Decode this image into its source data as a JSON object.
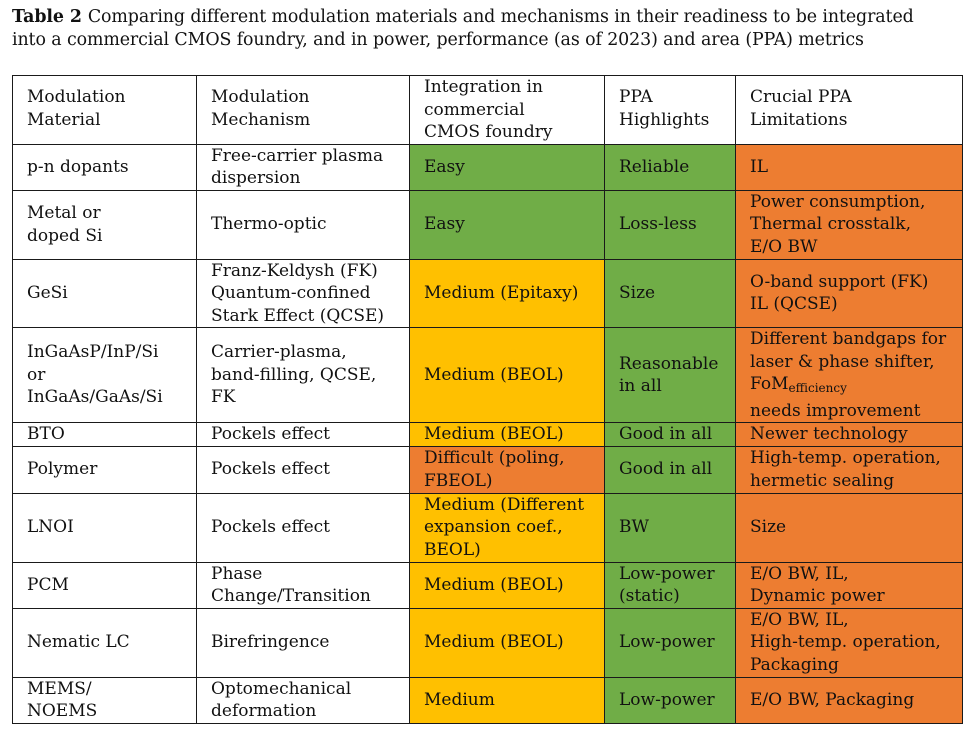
{
  "caption": {
    "label": "Table 2",
    "text_line1": "Comparing different modulation materials and mechanisms in their readiness to be integrated",
    "text_line2": "into a commercial CMOS foundry, and in power, performance (as of 2023) and area (PPA) metrics"
  },
  "colors": {
    "green": "#70ad47",
    "yellow": "#ffc000",
    "orange": "#ed7d31"
  },
  "headers": {
    "material": [
      "Modulation",
      "Material"
    ],
    "mechanism": [
      "Modulation",
      "Mechanism"
    ],
    "integration": [
      "Integration in",
      "commercial",
      "CMOS foundry"
    ],
    "ppa": [
      "PPA",
      "Highlights"
    ],
    "limitations": [
      "Crucial PPA",
      "Limitations"
    ]
  },
  "rows": [
    {
      "material": [
        "p-n dopants"
      ],
      "mechanism": [
        "Free-carrier plasma",
        "dispersion"
      ],
      "integration": [
        "Easy"
      ],
      "ppa": [
        "Reliable"
      ],
      "limitations": [
        "IL"
      ]
    },
    {
      "material": [
        "Metal or",
        "doped Si"
      ],
      "mechanism": [
        "Thermo-optic"
      ],
      "integration": [
        "Easy"
      ],
      "ppa": [
        "Loss-less"
      ],
      "limitations": [
        "Power consumption,",
        "Thermal crosstalk,",
        "E/O BW"
      ]
    },
    {
      "material": [
        "GeSi"
      ],
      "mechanism": [
        "Franz-Keldysh (FK)",
        "Quantum-confined",
        "Stark Effect (QCSE)"
      ],
      "integration": [
        "Medium (Epitaxy)"
      ],
      "ppa": [
        "Size"
      ],
      "limitations": [
        "O-band support (FK)",
        "IL (QCSE)"
      ]
    },
    {
      "material": [
        "InGaAsP/InP/Si",
        "or",
        "InGaAs/GaAs/Si"
      ],
      "mechanism": [
        "Carrier-plasma,",
        "band-filling, QCSE,",
        "FK"
      ],
      "integration": [
        "Medium (BEOL)"
      ],
      "ppa": [
        "Reasonable",
        "in all"
      ],
      "limitations": [
        "Different bandgaps for",
        "laser & phase shifter,"
      ],
      "fom_base": "FoM",
      "fom_sub": "efficiency",
      "limitations_last": "needs improvement"
    },
    {
      "material": [
        "BTO"
      ],
      "mechanism": [
        "Pockels effect"
      ],
      "integration": [
        "Medium (BEOL)"
      ],
      "ppa": [
        "Good in all"
      ],
      "limitations": [
        "Newer technology"
      ]
    },
    {
      "material": [
        "Polymer"
      ],
      "mechanism": [
        "Pockels effect"
      ],
      "integration": [
        "Difficult (poling,",
        "FBEOL)"
      ],
      "ppa": [
        "Good in all"
      ],
      "limitations": [
        "High-temp. operation,",
        "hermetic sealing"
      ]
    },
    {
      "material": [
        "LNOI"
      ],
      "mechanism": [
        "Pockels effect"
      ],
      "integration": [
        "Medium (Different",
        "expansion coef.,",
        "BEOL)"
      ],
      "ppa": [
        "BW"
      ],
      "limitations": [
        "Size"
      ]
    },
    {
      "material": [
        "PCM"
      ],
      "mechanism": [
        "Phase",
        "Change/Transition"
      ],
      "integration": [
        "Medium (BEOL)"
      ],
      "ppa": [
        "Low-power",
        "(static)"
      ],
      "limitations": [
        "E/O BW, IL,",
        "Dynamic power"
      ]
    },
    {
      "material": [
        "Nematic LC"
      ],
      "mechanism": [
        "Birefringence"
      ],
      "integration": [
        "Medium (BEOL)"
      ],
      "ppa": [
        "Low-power"
      ],
      "limitations": [
        "E/O BW, IL,",
        "High-temp. operation,",
        "Packaging"
      ]
    },
    {
      "material": [
        "MEMS/",
        "NOEMS"
      ],
      "mechanism": [
        "Optomechanical",
        "deformation"
      ],
      "integration": [
        "Medium"
      ],
      "ppa": [
        "Low-power"
      ],
      "limitations": [
        "E/O BW, Packaging"
      ]
    }
  ]
}
